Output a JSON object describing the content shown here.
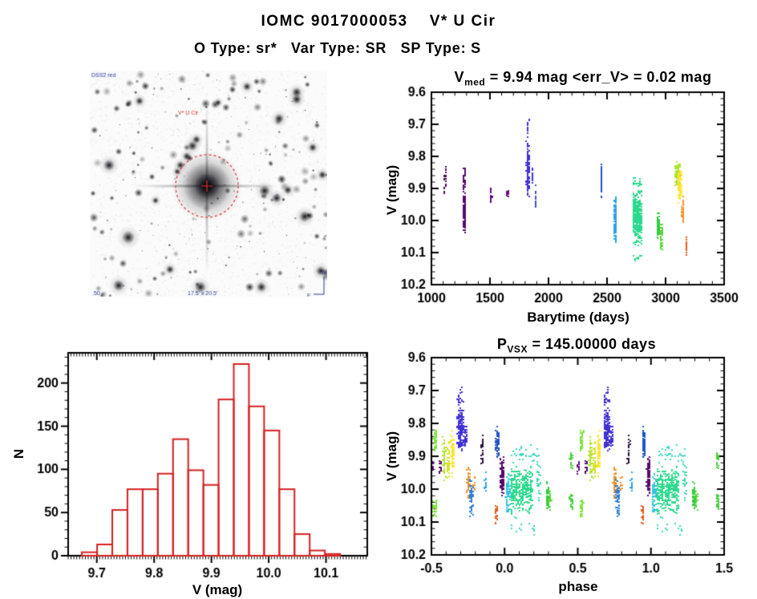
{
  "header": {
    "title": "IOMC 9017000053    V* U Cir",
    "subtitle": "O Type: sr*   Var Type: SR   SP Type: S"
  },
  "starfield": {
    "survey_label": "DSS2 red",
    "target_label": "V* U Cir",
    "bottom_left_label": ".50",
    "bottom_center_label": "17.5' x 20.5'",
    "compass_north": "N",
    "compass_east": "E",
    "marker_color": "#dd3333",
    "annotation_color": "#2a3a9a"
  },
  "chart_data": [
    {
      "id": "lightcurve",
      "type": "scatter",
      "title_prefix": "V",
      "title_sub": "med",
      "title_rest": " = 9.94 mag <err_V> = 0.02 mag",
      "xlabel": "Barytime (days)",
      "ylabel": "V (mag)",
      "xrange": [
        1000,
        3500
      ],
      "yrange": [
        9.6,
        10.2
      ],
      "xticks": [
        1000,
        1500,
        2000,
        2500,
        3000,
        3500
      ],
      "xtick_labels": [
        "1000",
        "1500",
        "2000",
        "2500",
        "3000",
        "3500"
      ],
      "yticks": [
        9.6,
        9.7,
        9.8,
        9.9,
        10.0,
        10.1,
        10.2
      ],
      "ytick_labels": [
        "9.6",
        "9.7",
        "9.8",
        "9.9",
        "10.0",
        "10.1",
        "10.2"
      ],
      "x_minor": 100,
      "y_minor": 0.02,
      "grid": false,
      "clusters": [
        {
          "x": 1118,
          "w": 8,
          "c": "#4A0C5F",
          "segs": [
            [
              9.82,
              9.925,
              20
            ]
          ]
        },
        {
          "x": 1282,
          "w": 10,
          "c": "#560B6E",
          "segs": [
            [
              9.83,
              9.905,
              35
            ],
            [
              9.9,
              10.045,
              150
            ]
          ]
        },
        {
          "x": 1508,
          "w": 8,
          "c": "#5C0E74",
          "segs": [
            [
              9.895,
              9.95,
              28
            ]
          ]
        },
        {
          "x": 1652,
          "w": 6,
          "c": "#660F80",
          "segs": [
            [
              9.9,
              9.93,
              12
            ]
          ]
        },
        {
          "x": 1823,
          "w": 9,
          "c": "#4130D4",
          "segs": [
            [
              9.68,
              9.745,
              16
            ],
            [
              9.745,
              9.935,
              170
            ]
          ]
        },
        {
          "x": 1862,
          "w": 6,
          "c": "#4130D4",
          "segs": [
            [
              9.835,
              9.885,
              35
            ]
          ]
        },
        {
          "x": 1890,
          "w": 5,
          "c": "#3E55BC",
          "segs": [
            [
              9.885,
              9.97,
              14
            ]
          ]
        },
        {
          "x": 2452,
          "w": 5,
          "c": "#2153C6",
          "segs": [
            [
              9.813,
              9.915,
              70
            ],
            [
              9.92,
              9.932,
              4
            ]
          ]
        },
        {
          "x": 2572,
          "w": 9,
          "c": "#2EA2E8",
          "segs": [
            [
              9.92,
              10.075,
              130
            ]
          ]
        },
        {
          "x": 2760,
          "w": 40,
          "c": "#2BD98C",
          "segs": [
            [
              9.895,
              10.085,
              340
            ],
            [
              9.855,
              9.9,
              18
            ],
            [
              10.085,
              10.14,
              10
            ]
          ]
        },
        {
          "x": 2938,
          "w": 10,
          "c": "#33CC44",
          "segs": [
            [
              9.968,
              10.065,
              65
            ]
          ]
        },
        {
          "x": 2966,
          "w": 8,
          "c": "#5BD636",
          "segs": [
            [
              10.0,
              10.105,
              35
            ]
          ]
        },
        {
          "x": 3105,
          "w": 20,
          "c": "#AEE232",
          "segs": [
            [
              9.815,
              9.9,
              80
            ]
          ]
        },
        {
          "x": 3120,
          "w": 16,
          "c": "#FFE32E",
          "segs": [
            [
              9.84,
              9.95,
              90
            ]
          ]
        },
        {
          "x": 3149,
          "w": 9,
          "c": "#F0922A",
          "segs": [
            [
              9.925,
              10.012,
              50
            ]
          ]
        },
        {
          "x": 3178,
          "w": 6,
          "c": "#E55A1E",
          "segs": [
            [
              10.038,
              10.118,
              26
            ]
          ]
        }
      ]
    },
    {
      "id": "histogram",
      "type": "bar",
      "xlabel": "V (mag)",
      "ylabel": "N",
      "bar_color": "#d42020",
      "xrange": [
        9.65,
        10.172
      ],
      "yrange": [
        235,
        0
      ],
      "xticks": [
        9.7,
        9.8,
        9.9,
        10.0,
        10.1
      ],
      "xtick_labels": [
        "9.7",
        "9.8",
        "9.9",
        "10.0",
        "10.1"
      ],
      "yticks": [
        0,
        50,
        100,
        150,
        200
      ],
      "ytick_labels": [
        "0",
        "50",
        "100",
        "150",
        "200"
      ],
      "x_minor": 0.005,
      "y_minor": 10,
      "bin_start": 9.674,
      "bin_width": 0.0265,
      "counts": [
        4,
        13,
        53,
        77,
        77,
        95,
        135,
        99,
        82,
        181,
        222,
        173,
        145,
        77,
        25,
        6,
        2
      ]
    },
    {
      "id": "phase_curve",
      "type": "scatter",
      "title_prefix": "P",
      "title_sub": "VSX",
      "title_rest": " = 145.00000 days",
      "xlabel": "phase",
      "ylabel": "V (mag)",
      "period_days": 145.0,
      "xrange": [
        -0.5,
        1.5
      ],
      "yrange": [
        9.6,
        10.2
      ],
      "xticks": [
        -0.5,
        0.0,
        0.5,
        1.0,
        1.5
      ],
      "xtick_labels": [
        "-0.5",
        "0.0",
        "0.5",
        "1.0",
        "1.5"
      ],
      "yticks": [
        9.6,
        9.7,
        9.8,
        9.9,
        10.0,
        10.1,
        10.2
      ],
      "ytick_labels": [
        "9.6",
        "9.7",
        "9.8",
        "9.9",
        "10.0",
        "10.1",
        "10.2"
      ],
      "x_minor": 0.1,
      "y_minor": 0.02,
      "repeat_offsets": [
        -1,
        0,
        1
      ],
      "clusters": [
        {
          "p": -0.497,
          "w": 0.01,
          "c": "#660F80",
          "segs": [
            [
              9.905,
              9.96,
              14
            ]
          ]
        },
        {
          "p": -0.474,
          "w": 0.011,
          "c": "#7FE63C",
          "segs": [
            [
              9.815,
              9.885,
              45
            ],
            [
              10.02,
              10.098,
              28
            ]
          ]
        },
        {
          "p": -0.44,
          "w": 0.008,
          "c": "#560B6E",
          "segs": [
            [
              9.908,
              9.958,
              16
            ]
          ]
        },
        {
          "p": -0.413,
          "w": 0.01,
          "c": "#B2E232",
          "segs": [
            [
              9.83,
              9.99,
              48
            ]
          ]
        },
        {
          "p": -0.385,
          "w": 0.01,
          "c": "#D5E530",
          "segs": [
            [
              9.845,
              9.975,
              42
            ]
          ]
        },
        {
          "p": -0.356,
          "w": 0.01,
          "c": "#FFE32E",
          "segs": [
            [
              9.81,
              9.965,
              55
            ]
          ]
        },
        {
          "p": -0.302,
          "w": 0.02,
          "c": "#4130D4",
          "segs": [
            [
              9.687,
              9.745,
              20
            ],
            [
              9.745,
              9.885,
              170
            ]
          ]
        },
        {
          "p": -0.267,
          "w": 0.008,
          "c": "#4130D4",
          "segs": [
            [
              9.8,
              9.875,
              30
            ]
          ]
        },
        {
          "p": -0.247,
          "w": 0.01,
          "c": "#F0922A",
          "segs": [
            [
              9.928,
              10.035,
              48
            ]
          ]
        },
        {
          "p": -0.227,
          "w": 0.01,
          "c": "#2E7FD8",
          "segs": [
            [
              9.955,
              10.095,
              60
            ]
          ]
        },
        {
          "p": -0.205,
          "w": 0.006,
          "c": "#F0922A",
          "segs": [
            [
              9.95,
              10.02,
              14
            ]
          ]
        },
        {
          "p": -0.152,
          "w": 0.007,
          "c": "#2A1038",
          "segs": [
            [
              9.82,
              9.95,
              24
            ]
          ]
        },
        {
          "p": -0.13,
          "w": 0.006,
          "c": "#2EA2E8",
          "segs": [
            [
              9.94,
              10.01,
              16
            ]
          ]
        },
        {
          "p": -0.057,
          "w": 0.006,
          "c": "#E55A1E",
          "segs": [
            [
              10.04,
              10.118,
              26
            ]
          ]
        },
        {
          "p": -0.048,
          "w": 0.011,
          "c": "#2153C6",
          "segs": [
            [
              9.81,
              9.905,
              75
            ]
          ]
        },
        {
          "p": -0.016,
          "w": 0.011,
          "c": "#550A6B",
          "segs": [
            [
              9.885,
              10.03,
              95
            ]
          ]
        },
        {
          "p": 0.022,
          "w": 0.014,
          "c": "#35C4DC",
          "segs": [
            [
              9.92,
              10.09,
              65
            ]
          ]
        },
        {
          "p": 0.115,
          "w": 0.075,
          "c": "#2BD98C",
          "segs": [
            [
              9.93,
              10.08,
              320
            ]
          ]
        },
        {
          "p": 0.13,
          "w": 0.1,
          "c": "#3AD6C0",
          "segs": [
            [
              9.855,
              9.93,
              32
            ],
            [
              10.08,
              10.14,
              14
            ]
          ]
        },
        {
          "p": 0.235,
          "w": 0.012,
          "c": "#3AD6A0",
          "segs": [
            [
              9.88,
              10.05,
              26
            ]
          ]
        },
        {
          "p": 0.295,
          "w": 0.01,
          "c": "#33CC44",
          "segs": [
            [
              9.975,
              10.062,
              55
            ]
          ]
        },
        {
          "p": 0.31,
          "w": 0.008,
          "c": "#5BD636",
          "segs": [
            [
              10.0,
              10.07,
              20
            ]
          ]
        },
        {
          "p": 0.455,
          "w": 0.008,
          "c": "#44D03C",
          "segs": [
            [
              9.88,
              9.94,
              22
            ],
            [
              10.0,
              10.07,
              26
            ]
          ]
        }
      ]
    }
  ]
}
